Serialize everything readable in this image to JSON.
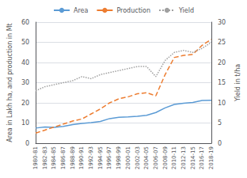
{
  "chart_data": {
    "type": "line",
    "categories": [
      "1980-81",
      "1982-83",
      "1984-85",
      "1986-87",
      "1988-89",
      "1990-91",
      "1992-93",
      "1994-95",
      "1996-97",
      "1998-99",
      "2000-01",
      "2002-03",
      "2004-05",
      "2006-07",
      "2008-09",
      "2010-11",
      "2012-13",
      "2014-15",
      "2016-17",
      "2018-19"
    ],
    "series": [
      {
        "name": "Area",
        "color": "#5b9bd5",
        "line_style": "solid",
        "values": [
          7.5,
          8.0,
          7.8,
          8.3,
          9.2,
          9.8,
          10.2,
          10.8,
          12.2,
          12.8,
          13.0,
          13.3,
          13.8,
          15.2,
          17.5,
          19.2,
          19.8,
          20.2,
          21.2,
          21.3
        ]
      },
      {
        "name": "Production",
        "color": "#ed7d31",
        "line_style": "dashed",
        "values": [
          5.0,
          6.5,
          8.0,
          9.5,
          11.0,
          12.0,
          14.5,
          17.0,
          20.0,
          22.0,
          23.0,
          24.5,
          25.0,
          23.5,
          34.0,
          42.5,
          43.5,
          44.0,
          48.5,
          51.5
        ]
      },
      {
        "name": "Yield",
        "color": "#a0a0a0",
        "line_style": "dotted",
        "axis": "y2",
        "values": [
          13.0,
          14.0,
          14.5,
          15.0,
          15.5,
          16.5,
          16.0,
          17.0,
          17.5,
          18.0,
          18.5,
          19.0,
          19.0,
          16.5,
          20.5,
          22.5,
          23.0,
          22.5,
          23.5,
          25.0
        ]
      }
    ],
    "ylim": [
      0,
      60
    ],
    "yticks": [
      0,
      10,
      20,
      30,
      40,
      50,
      60
    ],
    "y2lim": [
      0,
      30
    ],
    "y2ticks": [
      0,
      5,
      10,
      15,
      20,
      25,
      30
    ],
    "ylabel": "Area in Lakh ha, and production in Mt",
    "y2label": "Yield in t/ha",
    "grid": true,
    "legend": "top"
  }
}
